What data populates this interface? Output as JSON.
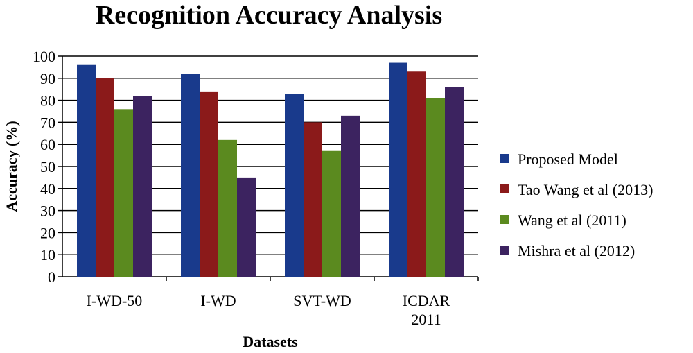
{
  "chart_data": {
    "type": "bar",
    "title": "Recognition Accuracy Analysis",
    "xlabel": "Datasets",
    "ylabel": "Accuracy (%)",
    "ylim": [
      0,
      100
    ],
    "yticks": [
      0,
      10,
      20,
      30,
      40,
      50,
      60,
      70,
      80,
      90,
      100
    ],
    "grid": true,
    "legend_position": "right",
    "categories": [
      [
        "I-WD-50"
      ],
      [
        "I-WD"
      ],
      [
        "SVT-WD"
      ],
      [
        "ICDAR",
        "2011"
      ]
    ],
    "series": [
      {
        "name": "Proposed Model",
        "color": "#193a8c",
        "values": [
          96,
          92,
          83,
          97
        ]
      },
      {
        "name": "Tao Wang et al (2013)",
        "color": "#8b1a1a",
        "values": [
          90,
          84,
          70,
          93
        ]
      },
      {
        "name": "Wang et al (2011)",
        "color": "#5b8a1f",
        "values": [
          76,
          62,
          57,
          81
        ]
      },
      {
        "name": "Mishra et al (2012)",
        "color": "#3c2360",
        "values": [
          82,
          45,
          73,
          86
        ]
      }
    ]
  }
}
